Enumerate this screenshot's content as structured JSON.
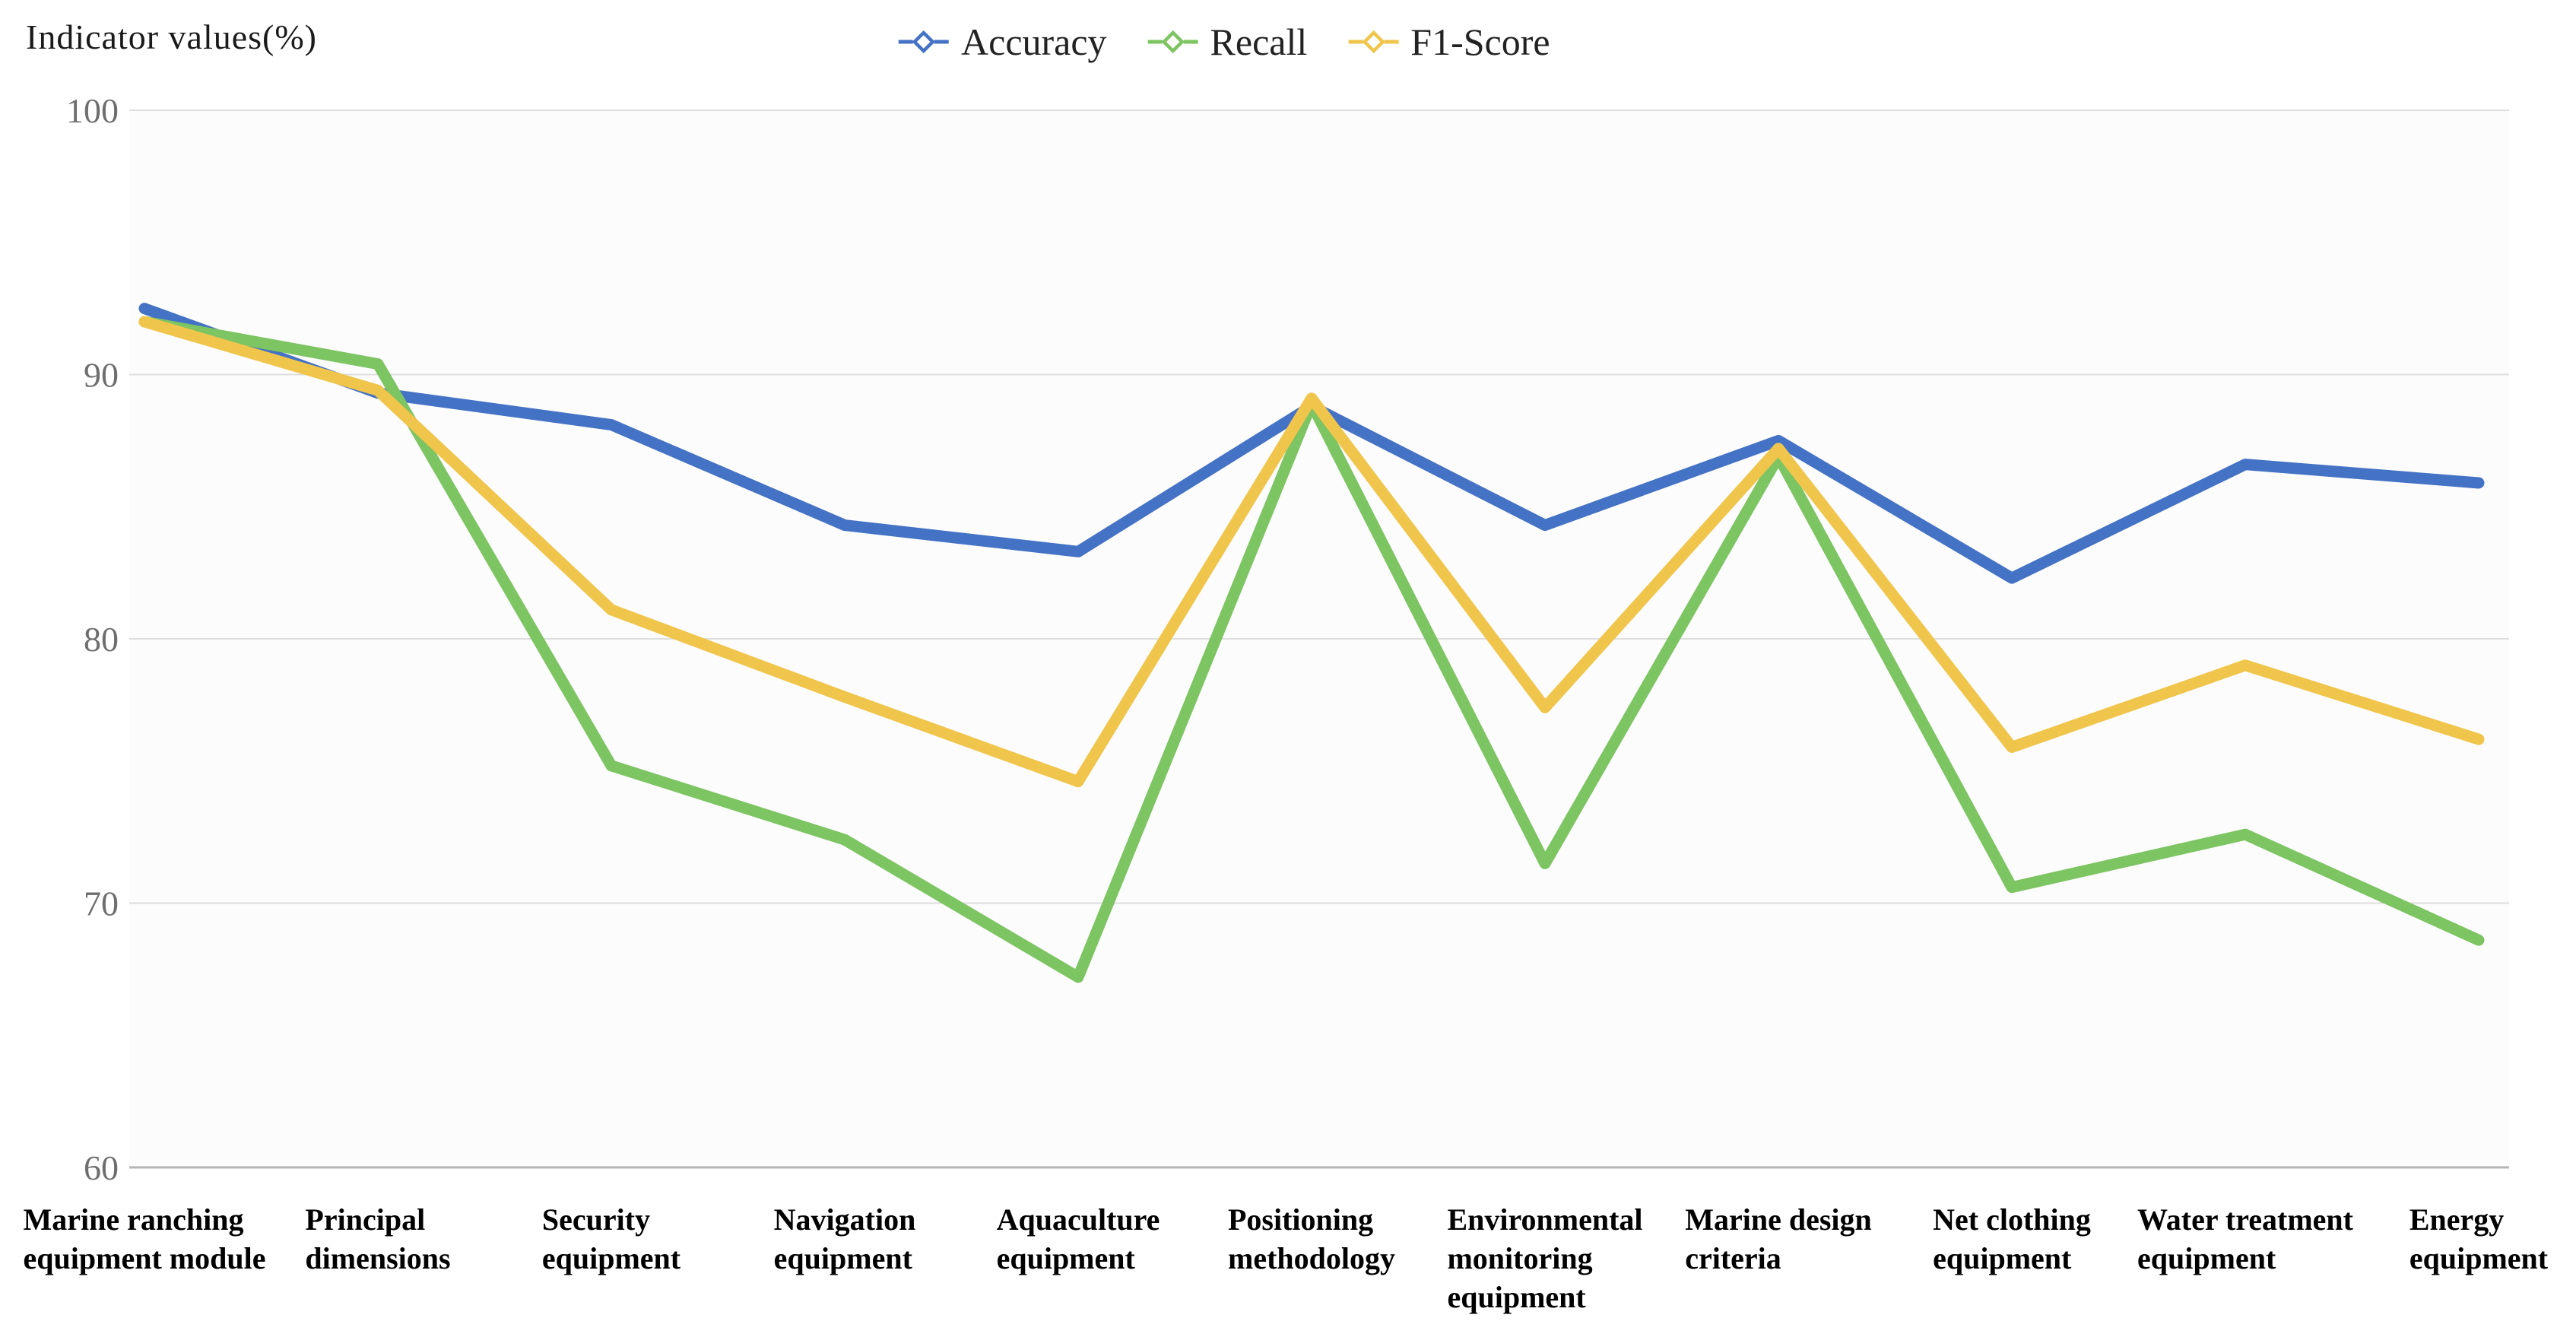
{
  "chart_data": {
    "type": "line",
    "title": "",
    "ylabel": "Indicator values(%)",
    "xlabel": "",
    "ylim": [
      60,
      100
    ],
    "yticks": [
      60,
      70,
      80,
      90,
      100
    ],
    "grid": true,
    "legend_position": "top-center",
    "categories": [
      [
        "Marine ranching",
        "equipment module"
      ],
      [
        "Principal",
        "dimensions"
      ],
      [
        "Security",
        "equipment"
      ],
      [
        "Navigation",
        "equipment"
      ],
      [
        "Aquaculture",
        "equipment"
      ],
      [
        "Positioning",
        "methodology"
      ],
      [
        "Environmental",
        "monitoring",
        "equipment"
      ],
      [
        "Marine design",
        "criteria"
      ],
      [
        "Net clothing",
        "equipment"
      ],
      [
        "Water treatment",
        "equipment"
      ],
      [
        "Energy",
        "equipment"
      ]
    ],
    "series": [
      {
        "name": "Accuracy",
        "color": "#4472c4",
        "values": [
          92.5,
          89.3,
          88.1,
          84.3,
          83.3,
          88.8,
          84.3,
          87.5,
          82.3,
          86.6,
          85.9
        ]
      },
      {
        "name": "Recall",
        "color": "#7dc462",
        "values": [
          92.0,
          90.4,
          75.2,
          72.4,
          67.2,
          88.9,
          71.5,
          86.9,
          70.6,
          72.6,
          68.6
        ]
      },
      {
        "name": "F1-Score",
        "color": "#f0c54b",
        "values": [
          92.0,
          89.4,
          81.1,
          77.8,
          74.6,
          89.1,
          77.4,
          87.2,
          75.9,
          79.0,
          76.2
        ]
      }
    ]
  }
}
